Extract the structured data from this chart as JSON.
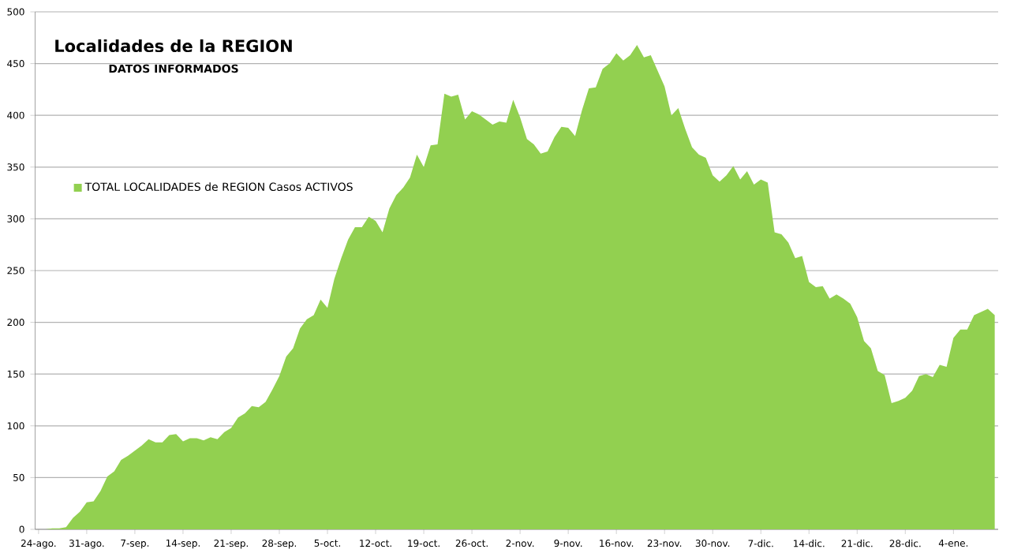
{
  "chart_data": {
    "type": "area",
    "title": "Localidades de la REGION",
    "subtitle": "DATOS INFORMADOS",
    "categories": [
      "24-ago.",
      null,
      null,
      null,
      null,
      null,
      null,
      "31-ago.",
      null,
      null,
      null,
      null,
      null,
      null,
      "7-sep.",
      null,
      null,
      null,
      null,
      null,
      null,
      "14-sep.",
      null,
      null,
      null,
      null,
      null,
      null,
      "21-sep.",
      null,
      null,
      null,
      null,
      null,
      null,
      "28-sep.",
      null,
      null,
      null,
      null,
      null,
      null,
      "5-oct.",
      null,
      null,
      null,
      null,
      null,
      null,
      "12-oct.",
      null,
      null,
      null,
      null,
      null,
      null,
      "19-oct.",
      null,
      null,
      null,
      null,
      null,
      null,
      "26-oct.",
      null,
      null,
      null,
      null,
      null,
      null,
      "2-nov.",
      null,
      null,
      null,
      null,
      null,
      null,
      "9-nov.",
      null,
      null,
      null,
      null,
      null,
      null,
      "16-nov.",
      null,
      null,
      null,
      null,
      null,
      null,
      "23-nov.",
      null,
      null,
      null,
      null,
      null,
      null,
      "30-nov.",
      null,
      null,
      null,
      null,
      null,
      null,
      "7-dic.",
      null,
      null,
      null,
      null,
      null,
      null,
      "14-dic.",
      null,
      null,
      null,
      null,
      null,
      null,
      "21-dic.",
      null,
      null,
      null,
      null,
      null,
      null,
      "28-dic.",
      null,
      null,
      null,
      null,
      null,
      null,
      "4-ene.",
      null,
      null,
      null,
      null,
      null,
      null
    ],
    "series": [
      {
        "name": "TOTAL LOCALIDADES de REGION Casos ACTIVOS",
        "color": "#92d050",
        "values": [
          0,
          0,
          1,
          1,
          2,
          11,
          17,
          26,
          27,
          37,
          51,
          56,
          67,
          71,
          76,
          81,
          87,
          84,
          84,
          91,
          92,
          85,
          88,
          88,
          86,
          89,
          87,
          94,
          98,
          108,
          112,
          119,
          118,
          123,
          135,
          148,
          167,
          175,
          194,
          203,
          207,
          222,
          214,
          242,
          262,
          280,
          292,
          292,
          302,
          298,
          287,
          310,
          323,
          330,
          340,
          362,
          350,
          371,
          372,
          421,
          418,
          420,
          396,
          404,
          401,
          396,
          391,
          394,
          393,
          415,
          398,
          377,
          372,
          363,
          365,
          379,
          389,
          388,
          380,
          405,
          426,
          427,
          445,
          450,
          460,
          453,
          458,
          468,
          456,
          458,
          443,
          428,
          400,
          407,
          387,
          369,
          362,
          359,
          342,
          336,
          342,
          351,
          338,
          346,
          333,
          338,
          335,
          287,
          285,
          277,
          262,
          264,
          239,
          234,
          235,
          223,
          227,
          223,
          218,
          205,
          182,
          175,
          153,
          149,
          122,
          124,
          127,
          134,
          148,
          150,
          147,
          159,
          157,
          185,
          193,
          193,
          207,
          210,
          213,
          207
        ]
      }
    ],
    "ylim": [
      0,
      500
    ],
    "yticks": [
      0,
      50,
      100,
      150,
      200,
      250,
      300,
      350,
      400,
      450,
      500
    ],
    "grid": "y",
    "legend": "top left"
  }
}
